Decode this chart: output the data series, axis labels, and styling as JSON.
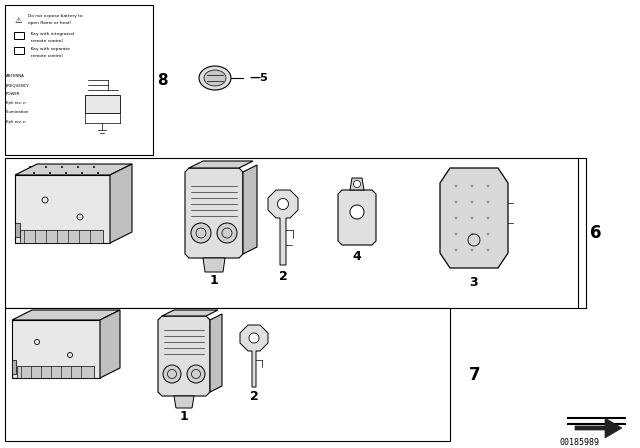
{
  "bg_color": "#ffffff",
  "line_color": "#000000",
  "part_number": "00185989",
  "gray_fill": "#e8e8e8",
  "dark_gray": "#b0b0b0",
  "mid_gray": "#d0d0d0",
  "section6_label": "6",
  "section7_label": "7",
  "item8_label": "8",
  "item5_label": "5",
  "item1_label": "1",
  "item2_label": "2",
  "item3_label": "3",
  "item4_label": "4"
}
